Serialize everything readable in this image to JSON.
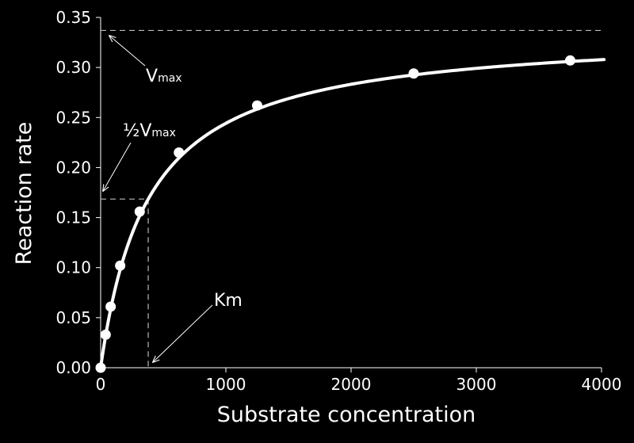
{
  "chart_data": {
    "type": "line",
    "title": "",
    "xlabel": "Substrate concentration",
    "ylabel": "Reaction rate",
    "xlim": [
      0,
      4000
    ],
    "ylim": [
      0,
      0.35
    ],
    "xticks": [
      0,
      1000,
      2000,
      3000,
      4000
    ],
    "xtick_labels": [
      "0",
      "1000",
      "2000",
      "3000",
      "4000"
    ],
    "yticks": [
      0,
      0.05,
      0.1,
      0.15,
      0.2,
      0.25,
      0.3,
      0.35
    ],
    "ytick_labels": [
      "0.00",
      "0.05",
      "0.10",
      "0.15",
      "0.20",
      "0.25",
      "0.30",
      "0.35"
    ],
    "grid": false,
    "legend": "none",
    "vmax": 0.337,
    "km": 380,
    "curve_x_max": 4020,
    "points": {
      "x": [
        0,
        40,
        80,
        156,
        312,
        625,
        1250,
        2500,
        3750
      ],
      "y": [
        0.0,
        0.033,
        0.061,
        0.102,
        0.156,
        0.215,
        0.262,
        0.294,
        0.307
      ]
    },
    "annotations": {
      "vmax_main": "V",
      "vmax_sub": "max",
      "halfvmax_main": "½V",
      "halfvmax_sub": "max",
      "km_label": "Km"
    },
    "colors": {
      "background": "#000000",
      "foreground": "#ffffff",
      "guide": "#bbbbbb"
    }
  }
}
